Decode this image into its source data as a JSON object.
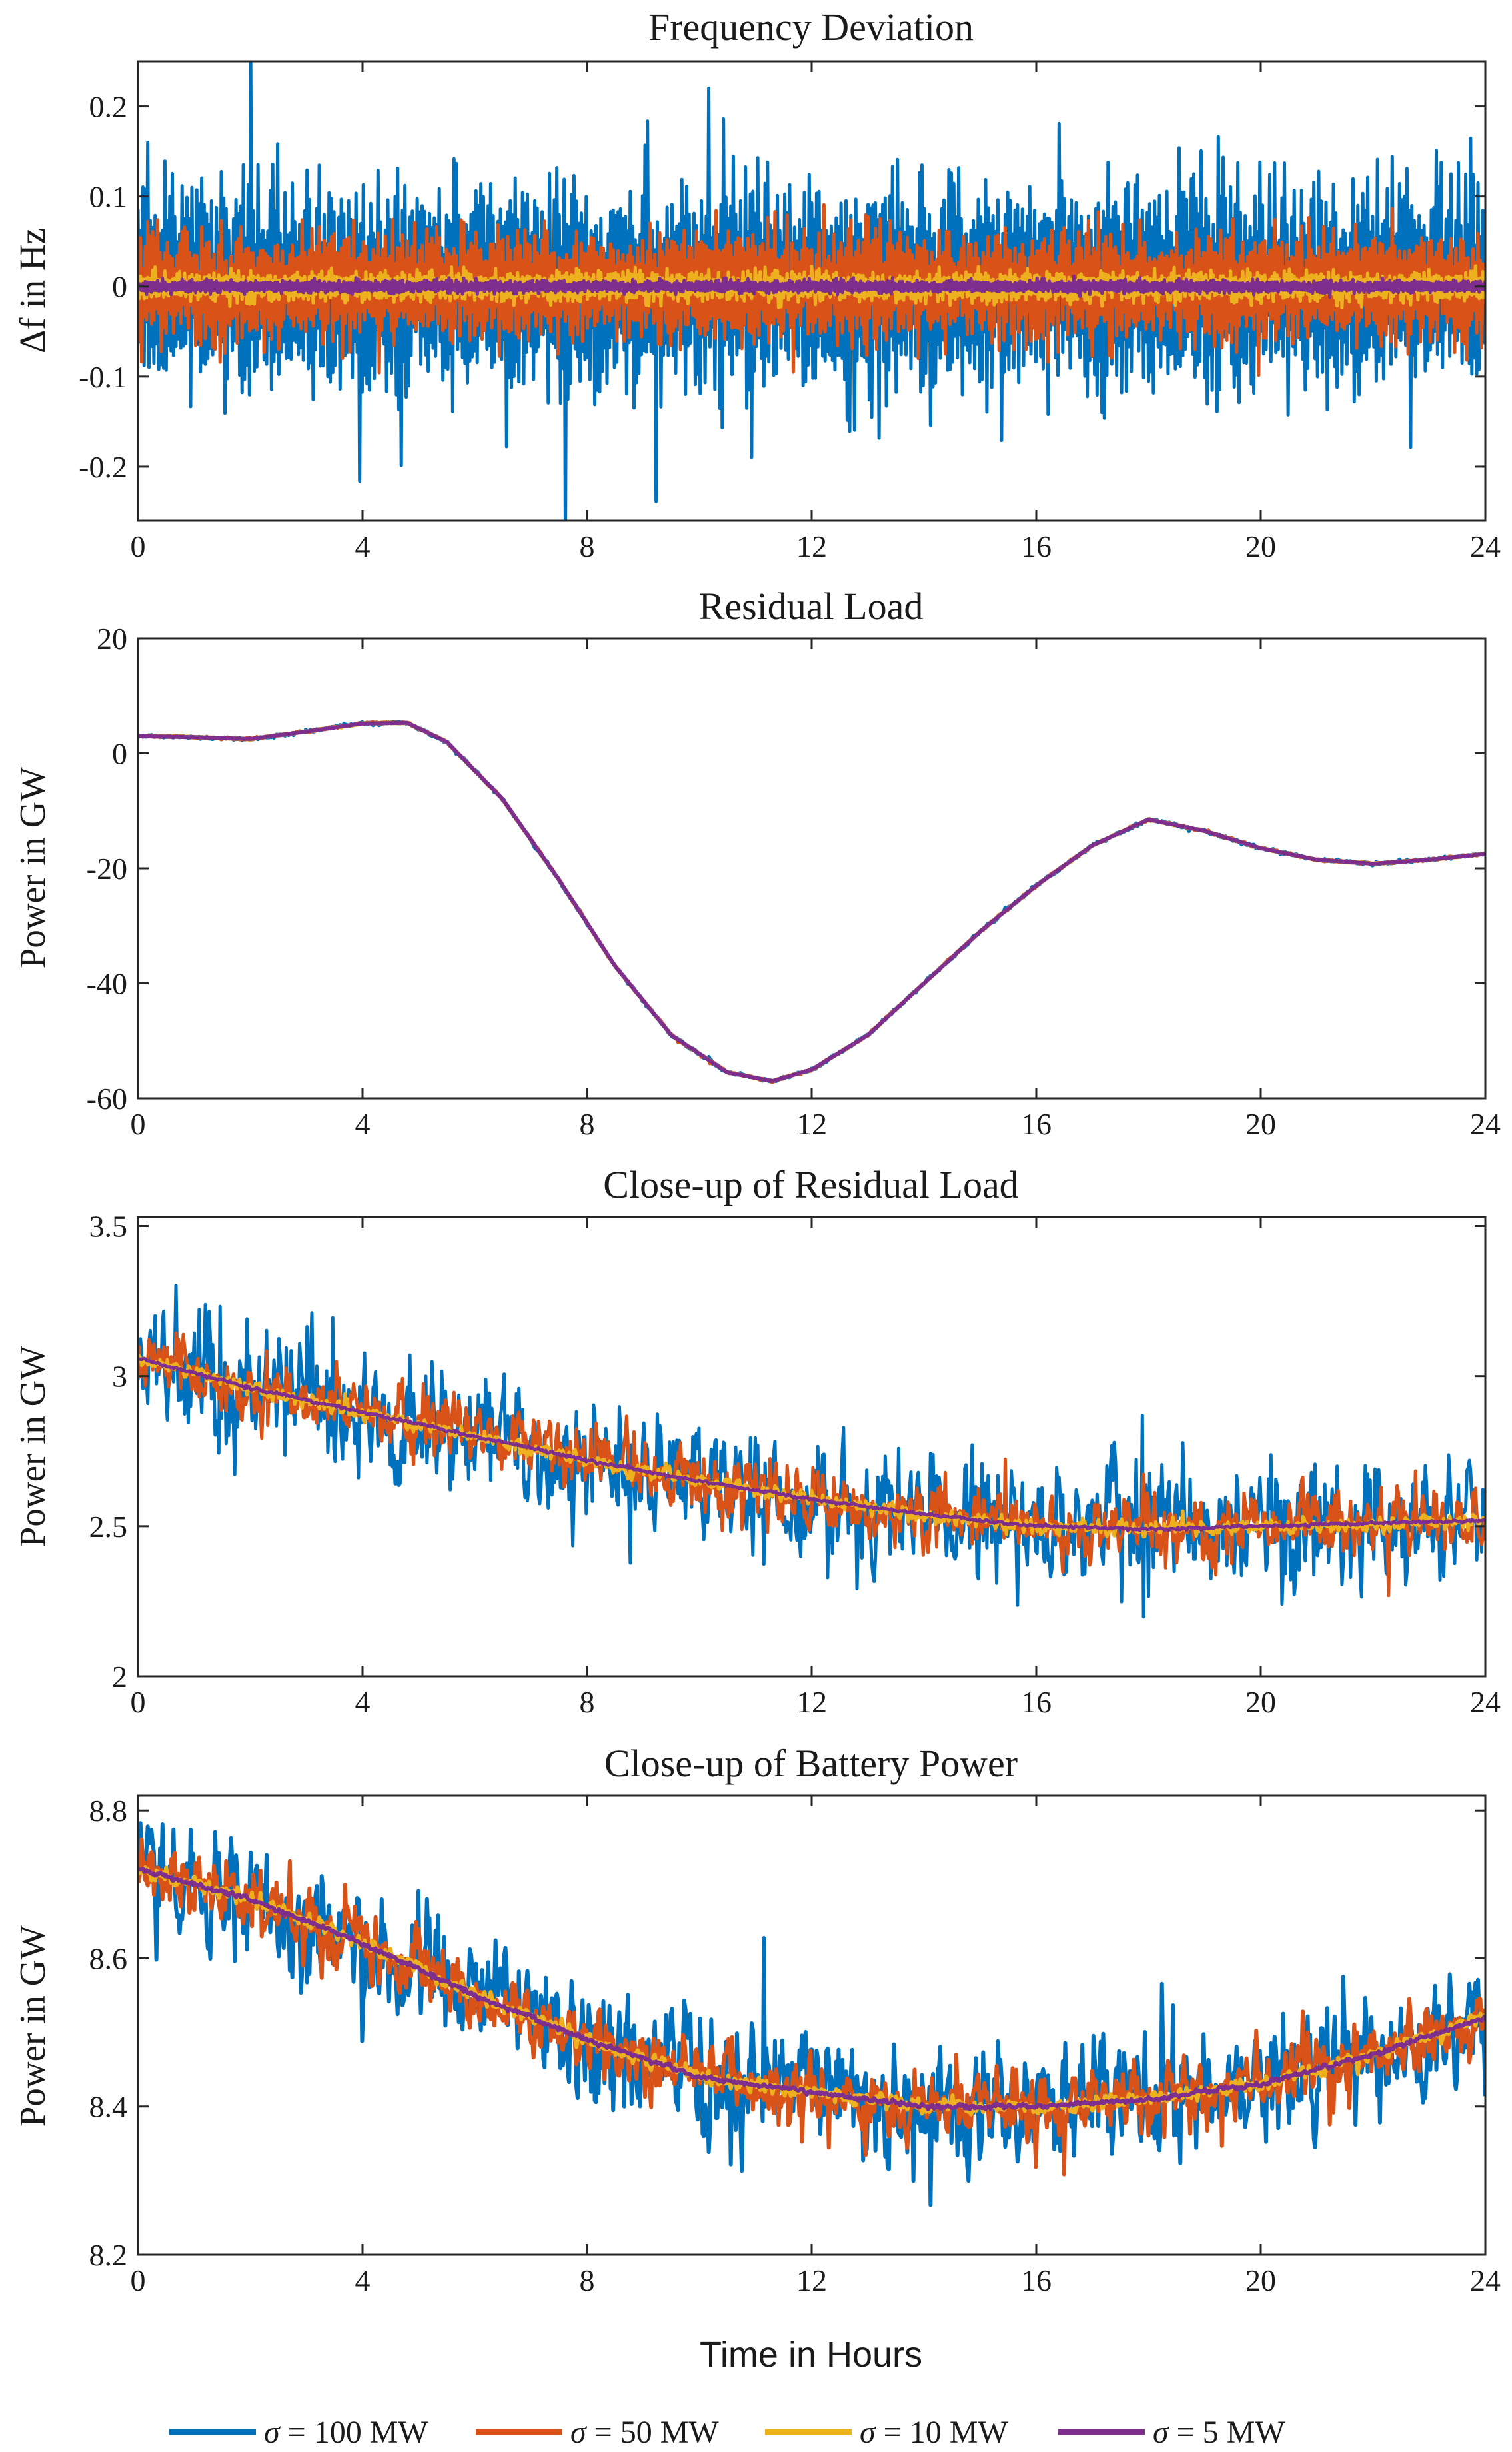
{
  "chart_data": [
    {
      "type": "line",
      "title": "Frequency Deviation",
      "ylabel_prefix": "Δ",
      "ylabel": "f in Hz",
      "xlabel": "",
      "xlim": [
        0,
        24
      ],
      "ylim": [
        -0.26,
        0.25
      ],
      "xticks": [
        0,
        4,
        8,
        12,
        16,
        20,
        24
      ],
      "xtick_labels": [
        "0",
        "4",
        "8",
        "12",
        "16",
        "20",
        "24"
      ],
      "yticks": [
        -0.2,
        -0.1,
        0,
        0.1,
        0.2
      ],
      "ytick_labels": [
        "-0.2",
        "-0.1",
        "0",
        "0.1",
        "0.2"
      ],
      "series": [
        {
          "name": "σ = 100 MW",
          "color": "#0072BD",
          "center": 0.0,
          "band": 0.085
        },
        {
          "name": "σ = 50 MW",
          "color": "#D95319",
          "center": 0.0,
          "band": 0.045
        },
        {
          "name": "σ = 10 MW",
          "color": "#EDB120",
          "center": 0.0,
          "band": 0.012
        },
        {
          "name": "σ = 5 MW",
          "color": "#7E2F8E",
          "center": 0.0,
          "band": 0.005
        }
      ]
    },
    {
      "type": "line",
      "title": "Residual Load",
      "ylabel": "Power in GW",
      "xlabel": "",
      "xlim": [
        0,
        24
      ],
      "ylim": [
        -60,
        20
      ],
      "xticks": [
        0,
        4,
        8,
        12,
        16,
        20,
        24
      ],
      "xtick_labels": [
        "0",
        "4",
        "8",
        "12",
        "16",
        "20",
        "24"
      ],
      "yticks": [
        -60,
        -40,
        -20,
        0,
        20
      ],
      "ytick_labels": [
        "-60",
        "-40",
        "-20",
        "0",
        "20"
      ],
      "x": [
        0,
        1,
        2,
        3,
        4,
        4.8,
        5.5,
        6.5,
        7.5,
        8.5,
        9.5,
        10.5,
        11.3,
        12,
        13,
        14,
        15,
        16,
        17,
        18,
        19,
        20,
        21,
        22,
        23,
        24
      ],
      "y": [
        3,
        2.8,
        2.5,
        3.8,
        5.2,
        5.3,
        2,
        -8,
        -22,
        -37,
        -49,
        -55.5,
        -57,
        -55,
        -49,
        -40,
        -31,
        -23,
        -16,
        -11.5,
        -13.5,
        -16.5,
        -18.5,
        -19.2,
        -18.5,
        -17.5
      ],
      "series": [
        {
          "name": "σ = 100 MW",
          "color": "#0072BD",
          "noise": 0.15
        },
        {
          "name": "σ = 50 MW",
          "color": "#D95319",
          "noise": 0.1
        },
        {
          "name": "σ = 10 MW",
          "color": "#EDB120",
          "noise": 0.05
        },
        {
          "name": "σ = 5 MW",
          "color": "#7E2F8E",
          "noise": 0.0
        }
      ]
    },
    {
      "type": "line",
      "title": "Close-up of Residual Load",
      "ylabel": "Power in GW",
      "xlabel": "",
      "xlim": [
        0,
        24
      ],
      "ylim": [
        2,
        3.53
      ],
      "xticks": [
        0,
        4,
        8,
        12,
        16,
        20,
        24
      ],
      "xtick_labels": [
        "0",
        "4",
        "8",
        "12",
        "16",
        "20",
        "24"
      ],
      "yticks": [
        2,
        2.5,
        3,
        3.5
      ],
      "ytick_labels": [
        "2",
        "2.5",
        "3",
        "3.5"
      ],
      "x": [
        0,
        2,
        4,
        6,
        8,
        10,
        12,
        14,
        16,
        18,
        20,
        22,
        24
      ],
      "y": [
        3.06,
        2.96,
        2.88,
        2.8,
        2.72,
        2.65,
        2.59,
        2.54,
        2.5,
        2.49,
        2.5,
        2.51,
        2.52
      ],
      "series": [
        {
          "name": "σ = 100 MW",
          "color": "#0072BD",
          "noise": 0.13
        },
        {
          "name": "σ = 50 MW",
          "color": "#D95319",
          "noise": 0.07
        },
        {
          "name": "σ = 10 MW",
          "color": "#EDB120",
          "noise": 0.015
        },
        {
          "name": "σ = 5 MW",
          "color": "#7E2F8E",
          "noise": 0.003
        }
      ]
    },
    {
      "type": "line",
      "title": "Close-up of Battery Power",
      "ylabel": "Power in GW",
      "xlabel": "Time in Hours",
      "xlim": [
        0,
        24
      ],
      "ylim": [
        8.2,
        8.82
      ],
      "xticks": [
        0,
        4,
        8,
        12,
        16,
        20,
        24
      ],
      "xtick_labels": [
        "0",
        "4",
        "8",
        "12",
        "16",
        "20",
        "24"
      ],
      "yticks": [
        8.2,
        8.4,
        8.6,
        8.8
      ],
      "ytick_labels": [
        "8.2",
        "8.4",
        "8.6",
        "8.8"
      ],
      "x": [
        0,
        2,
        4,
        6,
        8,
        10,
        12,
        14,
        16,
        18,
        20,
        22,
        24
      ],
      "y": [
        8.72,
        8.68,
        8.62,
        8.55,
        8.49,
        8.44,
        8.42,
        8.4,
        8.4,
        8.41,
        8.43,
        8.47,
        8.52
      ],
      "series": [
        {
          "name": "σ = 100 MW",
          "color": "#0072BD",
          "noise": 0.05
        },
        {
          "name": "σ = 50 MW",
          "color": "#D95319",
          "noise": 0.028
        },
        {
          "name": "σ = 10 MW",
          "color": "#EDB120",
          "noise": 0.006
        },
        {
          "name": "σ = 5 MW",
          "color": "#7E2F8E",
          "noise": 0.002
        }
      ]
    }
  ],
  "legend": {
    "placement": "bottom",
    "entries": [
      {
        "symbol": "σ",
        "text": " = 100 MW",
        "color": "#0072BD"
      },
      {
        "symbol": "σ",
        "text": " = 50 MW",
        "color": "#D95319"
      },
      {
        "symbol": "σ",
        "text": " = 10 MW",
        "color": "#EDB120"
      },
      {
        "symbol": "σ",
        "text": " = 5 MW",
        "color": "#7E2F8E"
      }
    ]
  }
}
